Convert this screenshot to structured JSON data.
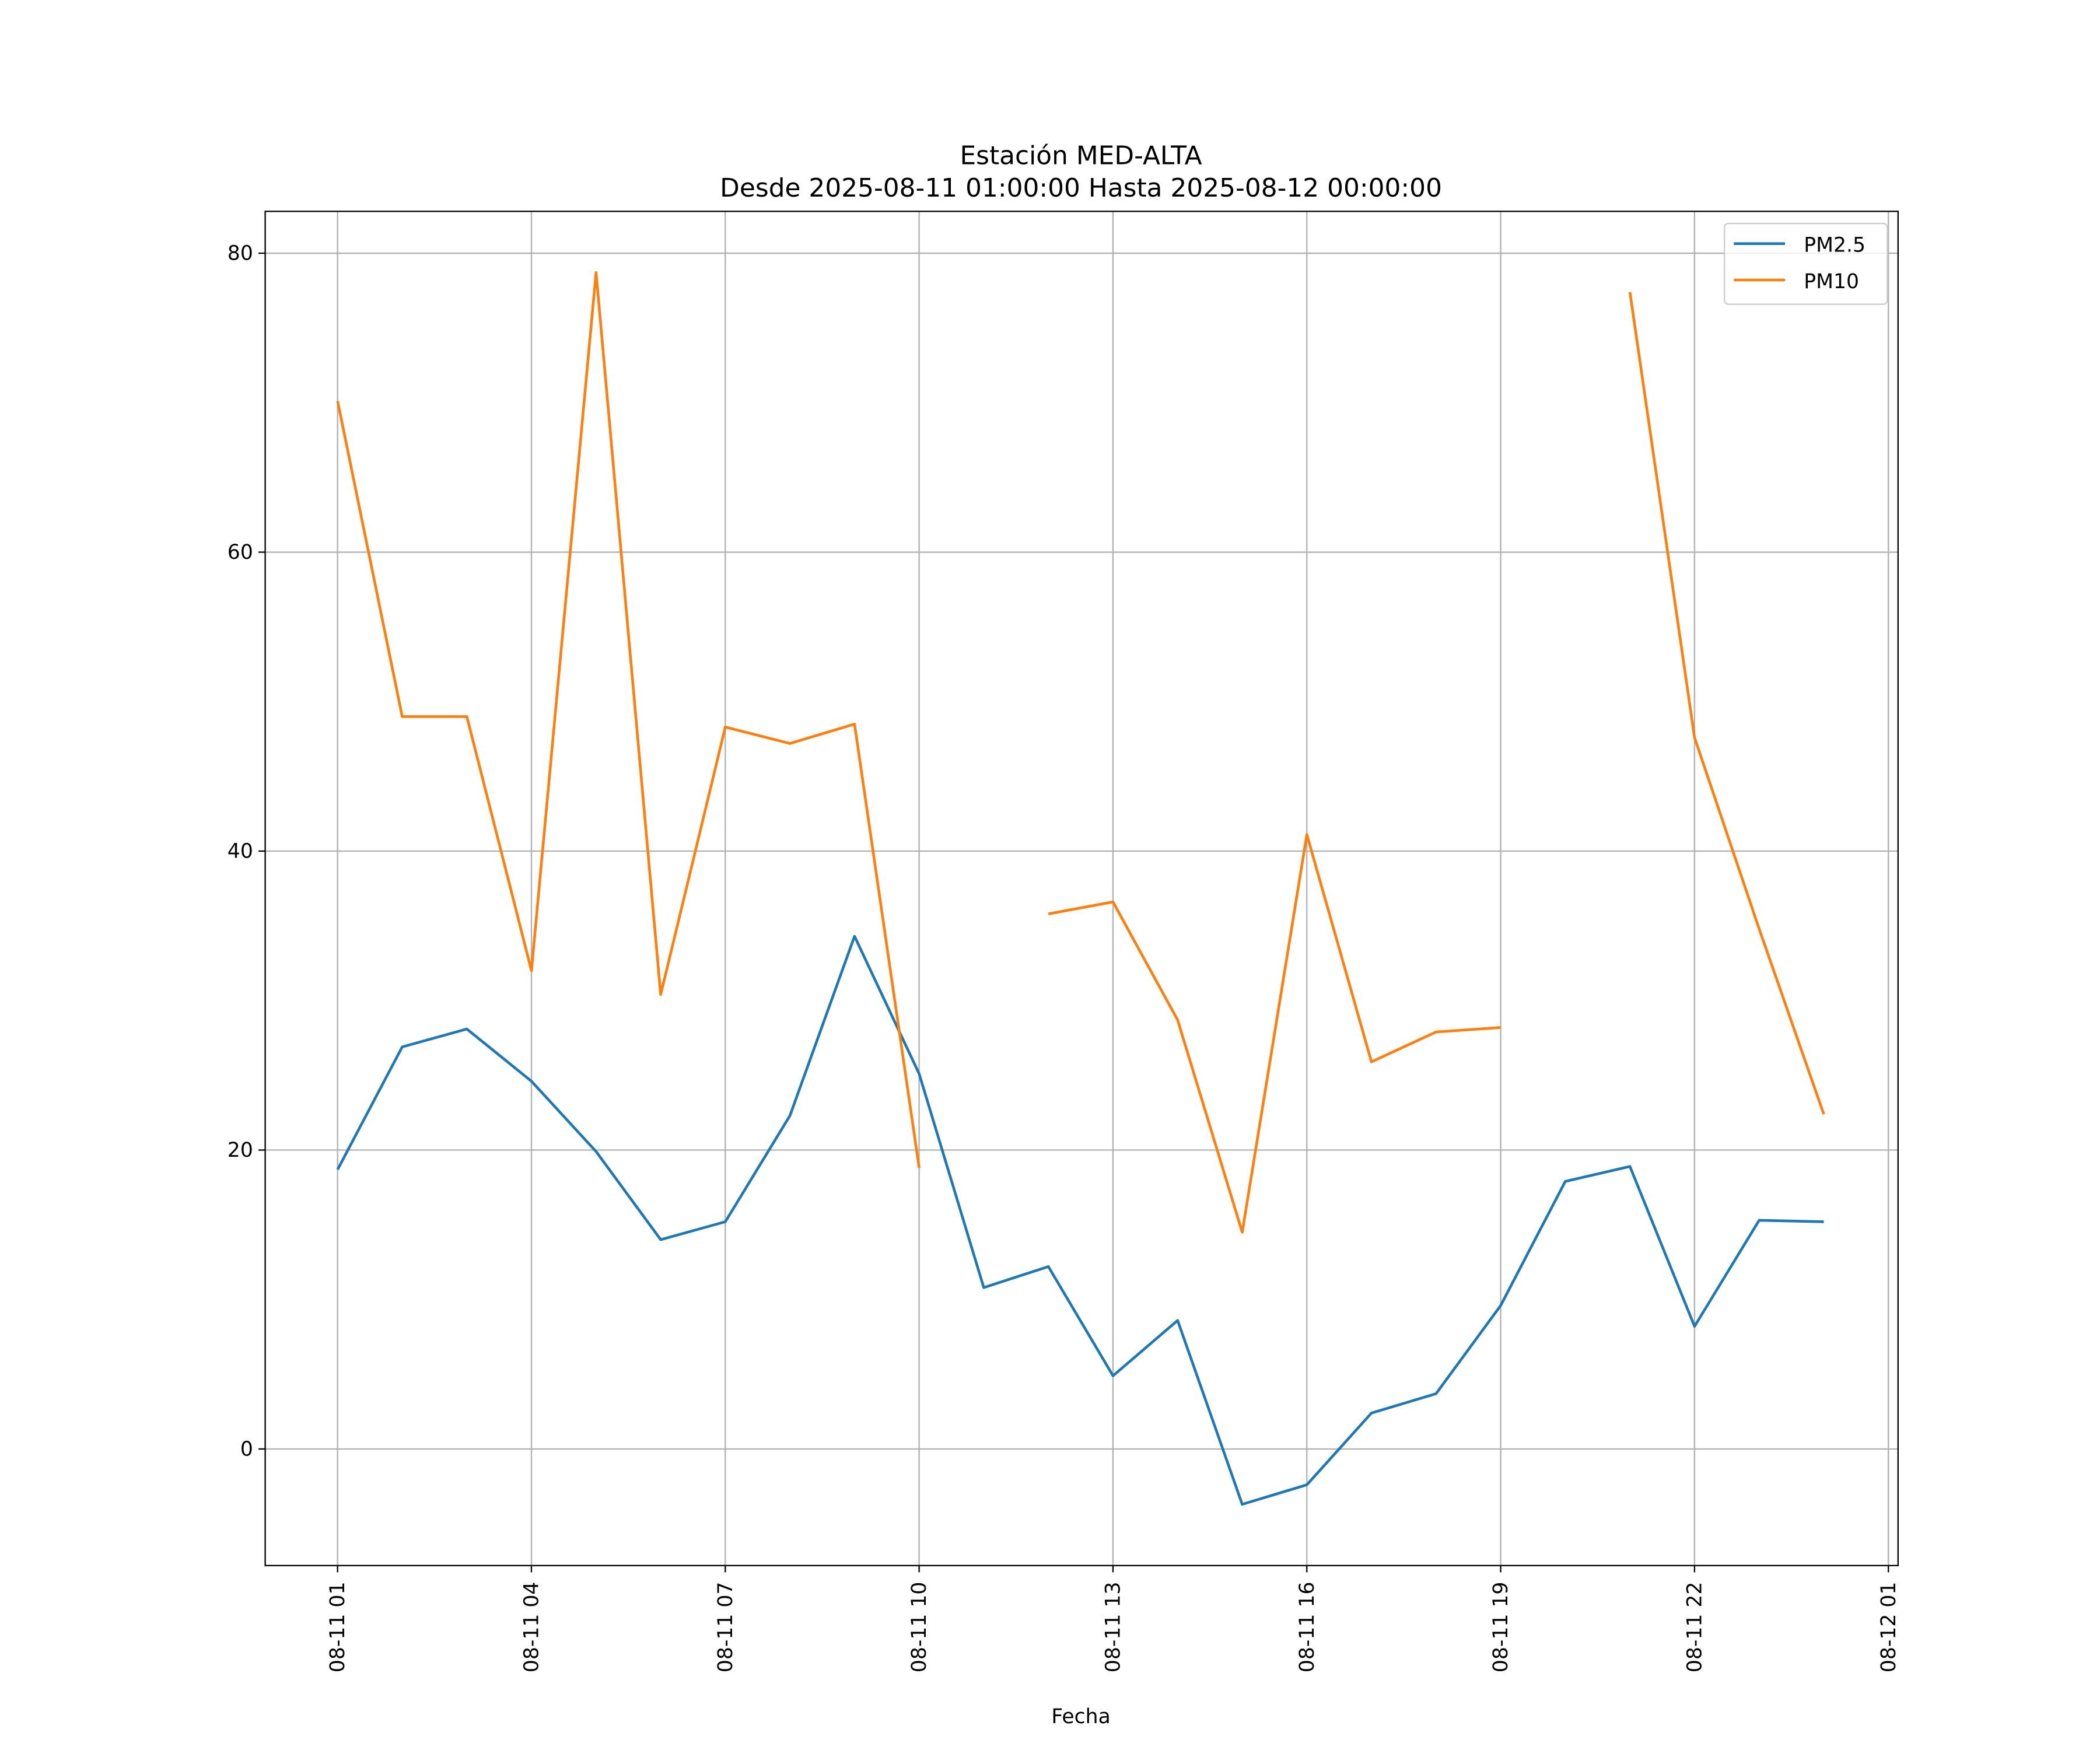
{
  "chart_data": {
    "type": "line",
    "title": "Estación MED-ALTA",
    "subtitle": "Desde 2025-08-11 01:00:00 Hasta 2025-08-12 00:00:00",
    "xlabel": "Fecha",
    "ylabel": "",
    "x_hours": [
      1,
      2,
      3,
      4,
      5,
      6,
      7,
      8,
      9,
      10,
      11,
      12,
      13,
      14,
      15,
      16,
      17,
      18,
      19,
      20,
      21,
      22,
      23,
      24
    ],
    "xlim": [
      -0.12,
      25.15
    ],
    "ylim": [
      -7.8,
      82.8
    ],
    "xticks": [
      {
        "hour": 1,
        "label": "08-11 01"
      },
      {
        "hour": 4,
        "label": "08-11 04"
      },
      {
        "hour": 7,
        "label": "08-11 07"
      },
      {
        "hour": 10,
        "label": "08-11 10"
      },
      {
        "hour": 13,
        "label": "08-11 13"
      },
      {
        "hour": 16,
        "label": "08-11 16"
      },
      {
        "hour": 19,
        "label": "08-11 19"
      },
      {
        "hour": 22,
        "label": "08-11 22"
      },
      {
        "hour": 25,
        "label": "08-12 01"
      }
    ],
    "yticks": [
      {
        "value": 0,
        "label": "0"
      },
      {
        "value": 20,
        "label": "20"
      },
      {
        "value": 40,
        "label": "40"
      },
      {
        "value": 60,
        "label": "60"
      },
      {
        "value": 80,
        "label": "80"
      }
    ],
    "grid": true,
    "legend_position": "top-right",
    "series": [
      {
        "name": "PM2.5",
        "color": "#1f77b4",
        "values": [
          18.7,
          26.9,
          28.1,
          24.6,
          19.9,
          14.0,
          15.2,
          22.3,
          34.3,
          25.1,
          10.8,
          12.2,
          4.9,
          8.6,
          -3.7,
          -2.4,
          2.4,
          3.7,
          9.6,
          17.9,
          18.9,
          8.2,
          15.3,
          15.2
        ]
      },
      {
        "name": "PM10",
        "color": "#ff7f0e",
        "values": [
          70.1,
          49.0,
          49.0,
          32.0,
          78.7,
          30.4,
          48.3,
          47.2,
          48.5,
          18.8,
          null,
          35.8,
          36.6,
          28.7,
          14.5,
          41.1,
          25.9,
          27.9,
          28.2,
          null,
          77.4,
          47.6,
          34.8,
          22.4
        ]
      }
    ]
  }
}
